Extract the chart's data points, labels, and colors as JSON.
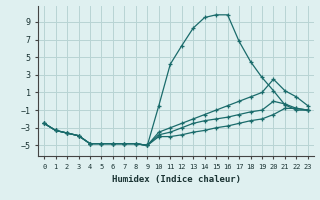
{
  "xlabel": "Humidex (Indice chaleur)",
  "bg_color": "#dff0f0",
  "grid_color": "#b8d4d4",
  "line_color": "#1a6b6b",
  "xlim": [
    -0.5,
    23.5
  ],
  "ylim": [
    -6.2,
    10.8
  ],
  "xticks": [
    0,
    1,
    2,
    3,
    4,
    5,
    6,
    7,
    8,
    9,
    10,
    11,
    12,
    13,
    14,
    15,
    16,
    17,
    18,
    19,
    20,
    21,
    22,
    23
  ],
  "yticks": [
    -5,
    -3,
    -1,
    1,
    3,
    5,
    7,
    9
  ],
  "series": [
    {
      "x": [
        0,
        1,
        2,
        3,
        4,
        5,
        6,
        7,
        8,
        9,
        10,
        11,
        12,
        13,
        14,
        15,
        16,
        17,
        18,
        19,
        20,
        21,
        22,
        23
      ],
      "y": [
        -2.5,
        -3.3,
        -3.6,
        -3.9,
        -4.8,
        -4.8,
        -4.8,
        -4.8,
        -4.8,
        -5.0,
        -0.5,
        4.2,
        6.3,
        8.3,
        9.5,
        9.8,
        9.8,
        6.8,
        4.5,
        2.7,
        1.2,
        -0.4,
        -1.0,
        -1.0
      ]
    },
    {
      "x": [
        0,
        1,
        2,
        3,
        4,
        5,
        6,
        7,
        8,
        9,
        10,
        11,
        12,
        13,
        14,
        15,
        16,
        17,
        18,
        19,
        20,
        21,
        22,
        23
      ],
      "y": [
        -2.5,
        -3.3,
        -3.6,
        -3.9,
        -4.8,
        -4.8,
        -4.8,
        -4.8,
        -4.8,
        -5.0,
        -3.5,
        -3.0,
        -2.5,
        -2.0,
        -1.5,
        -1.0,
        -0.5,
        0.0,
        0.5,
        1.0,
        2.5,
        1.2,
        0.5,
        -0.5
      ]
    },
    {
      "x": [
        0,
        1,
        2,
        3,
        4,
        5,
        6,
        7,
        8,
        9,
        10,
        11,
        12,
        13,
        14,
        15,
        16,
        17,
        18,
        19,
        20,
        21,
        22,
        23
      ],
      "y": [
        -2.5,
        -3.3,
        -3.6,
        -3.9,
        -4.8,
        -4.8,
        -4.8,
        -4.8,
        -4.8,
        -5.0,
        -3.8,
        -3.5,
        -3.0,
        -2.5,
        -2.2,
        -2.0,
        -1.8,
        -1.5,
        -1.2,
        -1.0,
        0.0,
        -0.3,
        -0.8,
        -1.0
      ]
    },
    {
      "x": [
        0,
        1,
        2,
        3,
        4,
        5,
        6,
        7,
        8,
        9,
        10,
        11,
        12,
        13,
        14,
        15,
        16,
        17,
        18,
        19,
        20,
        21,
        22,
        23
      ],
      "y": [
        -2.5,
        -3.3,
        -3.6,
        -3.9,
        -4.8,
        -4.8,
        -4.8,
        -4.8,
        -4.8,
        -5.0,
        -4.0,
        -4.0,
        -3.8,
        -3.5,
        -3.3,
        -3.0,
        -2.8,
        -2.5,
        -2.2,
        -2.0,
        -1.5,
        -0.8,
        -0.8,
        -1.0
      ]
    }
  ]
}
